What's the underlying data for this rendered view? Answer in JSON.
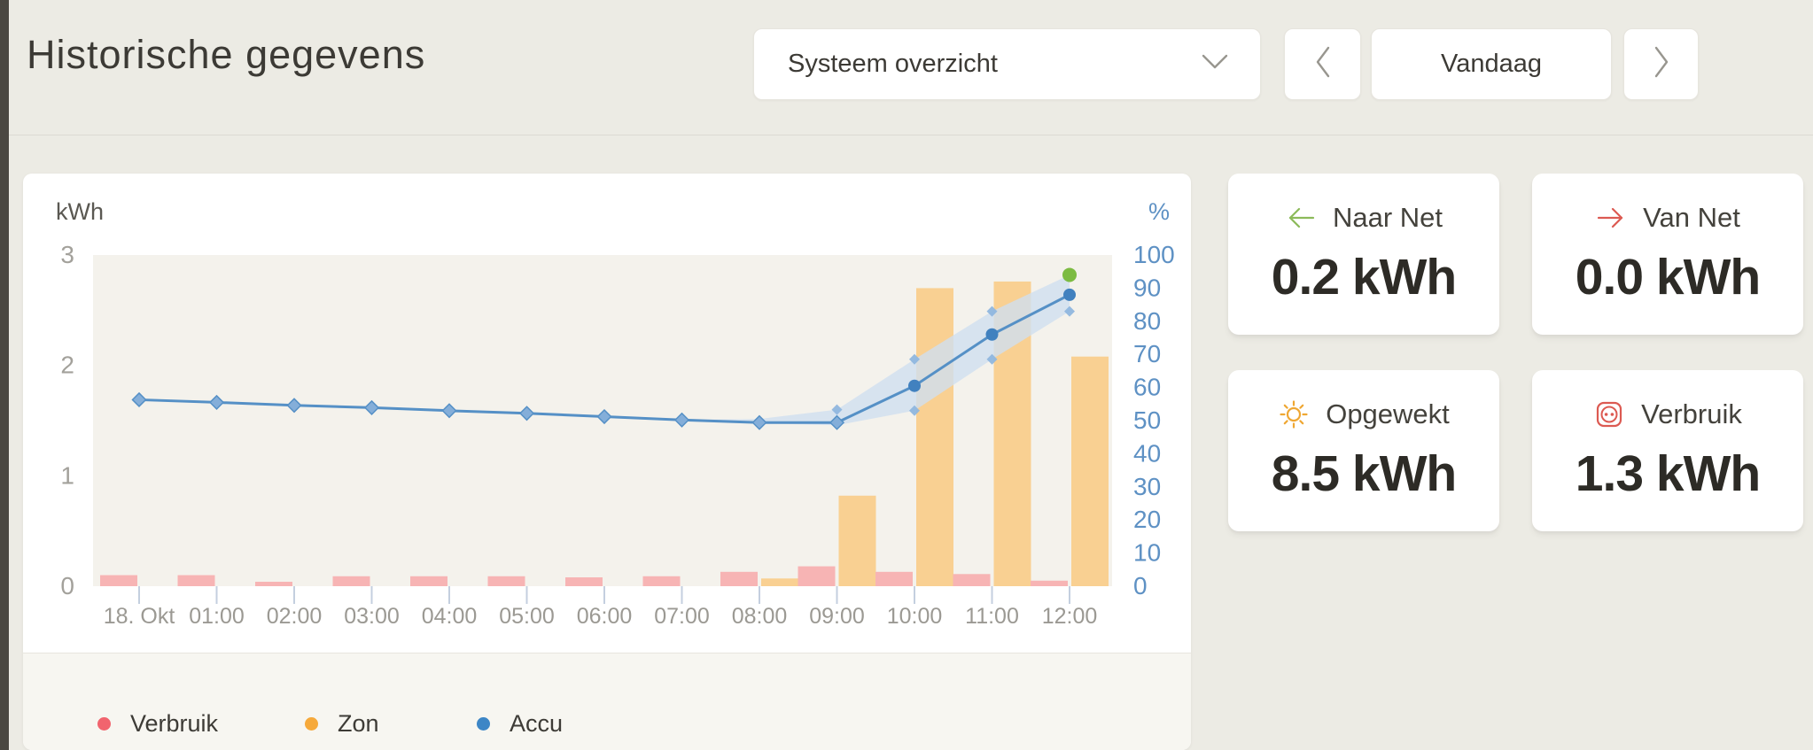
{
  "header": {
    "title": "Historische gegevens",
    "view_selector": {
      "value": "Systeem overzicht"
    },
    "date_label": "Vandaag"
  },
  "chart_card": {
    "legend": [
      {
        "label": "Verbruik",
        "color": "#f1646e"
      },
      {
        "label": "Zon",
        "color": "#f6a93b"
      },
      {
        "label": "Accu",
        "color": "#3d86c6"
      }
    ]
  },
  "chart_data": {
    "type": "bar",
    "subtype": "grouped bars (kWh) + line with forecast band (%)",
    "x_categories": [
      "18. Okt",
      "01:00",
      "02:00",
      "03:00",
      "04:00",
      "05:00",
      "06:00",
      "07:00",
      "08:00",
      "09:00",
      "10:00",
      "11:00",
      "12:00"
    ],
    "left_axis": {
      "unit": "kWh",
      "min": 0,
      "max": 3,
      "ticks": [
        3,
        2,
        1,
        0
      ]
    },
    "right_axis": {
      "unit": "%",
      "min": 0,
      "max": 100,
      "ticks": [
        100,
        90,
        80,
        70,
        60,
        50,
        40,
        30,
        20,
        10,
        0
      ]
    },
    "plot_bg": "#f4f2ec",
    "grid": false,
    "series": [
      {
        "name": "Verbruik",
        "type": "bar",
        "axis": "kWh",
        "color": "#f7b4b4",
        "values": [
          0.1,
          0.1,
          0.04,
          0.09,
          0.09,
          0.09,
          0.08,
          0.09,
          0.13,
          0.18,
          0.13,
          0.11,
          0.05
        ]
      },
      {
        "name": "Zon",
        "type": "bar",
        "axis": "kWh",
        "color": "#f9d092",
        "values": [
          0,
          0,
          0,
          0,
          0,
          0,
          0,
          0,
          0.07,
          0.82,
          2.7,
          2.76,
          2.08
        ]
      },
      {
        "name": "Accu",
        "type": "line",
        "axis": "%",
        "color": "#5590c6",
        "marker_fill": "#84aed9",
        "solid_marker_fill": "#4181bf",
        "diamond_until_index": 9,
        "values": [
          56.3,
          55.5,
          54.6,
          53.9,
          53.0,
          52.2,
          51.2,
          50.2,
          49.4,
          49.4,
          60.5,
          76,
          88
        ]
      }
    ],
    "band": {
      "name": "Accu prognose band",
      "axis": "%",
      "color": "#cfdff0",
      "opacity": 0.8,
      "x": [
        7,
        8,
        9,
        10,
        11,
        12
      ],
      "upper": [
        50.2,
        50.5,
        53.3,
        68.5,
        83,
        94
      ],
      "lower": [
        50.2,
        49.2,
        48.6,
        53.0,
        68.5,
        83
      ],
      "edge_markers": [
        {
          "x": 9,
          "value": 53.3
        },
        {
          "x": 10,
          "value": 68.5
        },
        {
          "x": 10,
          "value": 53.0
        },
        {
          "x": 11,
          "value": 83
        },
        {
          "x": 11,
          "value": 68.5
        },
        {
          "x": 12,
          "value": 83
        }
      ],
      "edge_marker_color": "#8fb6de"
    },
    "annotations": {
      "green_dot": {
        "x": 12,
        "value": 94,
        "color": "#7cbb42"
      }
    },
    "axis_text_colors": {
      "left": "#a3a19b",
      "right": "#5e91c4",
      "x": "#9b9993"
    },
    "tick_mark_color": "#c4cfdf"
  },
  "stat_cards": [
    {
      "id": "naar-net",
      "icon": "arrow-left",
      "icon_color": "#8cba5a",
      "label": "Naar Net",
      "value": "0.2 kWh"
    },
    {
      "id": "van-net",
      "icon": "arrow-right",
      "icon_color": "#dc5a52",
      "label": "Van Net",
      "value": "0.0 kWh"
    },
    {
      "id": "opgewekt",
      "icon": "sun",
      "icon_color": "#efa733",
      "label": "Opgewekt",
      "value": "8.5 kWh"
    },
    {
      "id": "verbruik",
      "icon": "socket",
      "icon_color": "#dc5a52",
      "label": "Verbruik",
      "value": "1.3 kWh"
    }
  ]
}
